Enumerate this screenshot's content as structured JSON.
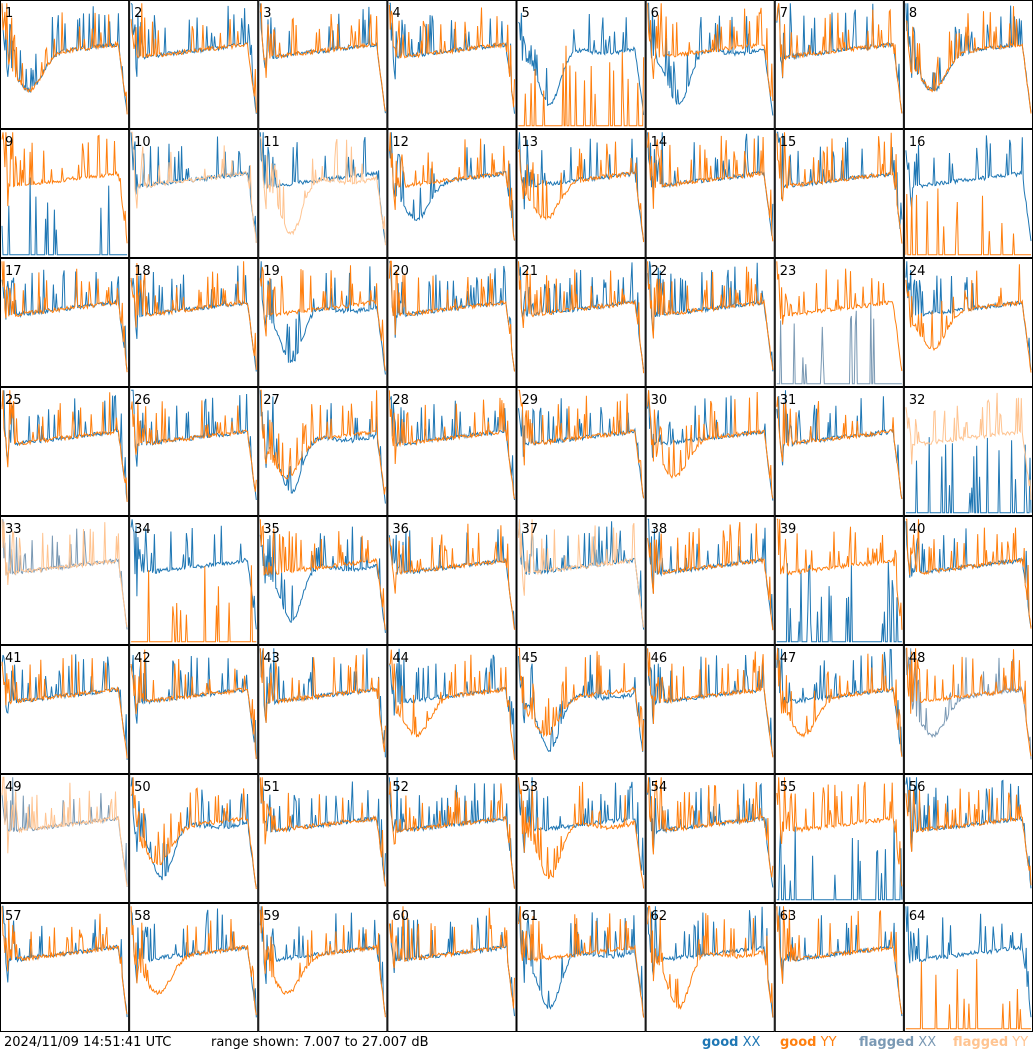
{
  "footer": {
    "timestamp": "2024/11/09 14:51:41 UTC",
    "range_text": "range shown: 7.007 to 27.007 dB"
  },
  "legend": {
    "good_xx": {
      "word": "good",
      "pol": "XX",
      "color": "#1f77b4"
    },
    "good_yy": {
      "word": "good",
      "pol": "YY",
      "color": "#ff7f0e"
    },
    "flagged_xx": {
      "word": "flagged",
      "pol": "XX",
      "color": "#7a99b4"
    },
    "flagged_yy": {
      "word": "flagged",
      "pol": "YY",
      "color": "#ffc491"
    }
  },
  "chart_data": {
    "type": "line",
    "layout": "8x8 small multiples",
    "y_unit": "dB",
    "ylim": [
      7.007,
      27.007
    ],
    "panels": [
      {
        "label": "1",
        "xx": "good",
        "yy": "good",
        "shape_xx": "sag",
        "shape_yy": "sag"
      },
      {
        "label": "2",
        "xx": "good",
        "yy": "good",
        "shape_xx": "flat",
        "shape_yy": "flat"
      },
      {
        "label": "3",
        "xx": "good",
        "yy": "good",
        "shape_xx": "flat",
        "shape_yy": "flat"
      },
      {
        "label": "4",
        "xx": "good",
        "yy": "good",
        "shape_xx": "flat",
        "shape_yy": "flat"
      },
      {
        "label": "5",
        "xx": "good",
        "yy": "good",
        "shape_xx": "deep",
        "shape_yy": "zero"
      },
      {
        "label": "6",
        "xx": "good",
        "yy": "good",
        "shape_xx": "deep",
        "shape_yy": "flat"
      },
      {
        "label": "7",
        "xx": "good",
        "yy": "good",
        "shape_xx": "flat",
        "shape_yy": "flat"
      },
      {
        "label": "8",
        "xx": "good",
        "yy": "good",
        "shape_xx": "sag",
        "shape_yy": "sag"
      },
      {
        "label": "9",
        "xx": "good",
        "yy": "good",
        "shape_xx": "zero",
        "shape_yy": "flat"
      },
      {
        "label": "10",
        "xx": "good",
        "yy": "flagged",
        "shape_xx": "flat",
        "shape_yy": "flat"
      },
      {
        "label": "11",
        "xx": "good",
        "yy": "flagged",
        "shape_xx": "flat",
        "shape_yy": "deep"
      },
      {
        "label": "12",
        "xx": "good",
        "yy": "good",
        "shape_xx": "sag",
        "shape_yy": "flat"
      },
      {
        "label": "13",
        "xx": "good",
        "yy": "good",
        "shape_xx": "flat",
        "shape_yy": "sag"
      },
      {
        "label": "14",
        "xx": "good",
        "yy": "good",
        "shape_xx": "flat",
        "shape_yy": "flat"
      },
      {
        "label": "15",
        "xx": "good",
        "yy": "good",
        "shape_xx": "flat",
        "shape_yy": "flat"
      },
      {
        "label": "16",
        "xx": "good",
        "yy": "good",
        "shape_xx": "flat",
        "shape_yy": "zero"
      },
      {
        "label": "17",
        "xx": "good",
        "yy": "good",
        "shape_xx": "flat",
        "shape_yy": "flat"
      },
      {
        "label": "18",
        "xx": "good",
        "yy": "good",
        "shape_xx": "flat",
        "shape_yy": "flat"
      },
      {
        "label": "19",
        "xx": "good",
        "yy": "good",
        "shape_xx": "deep",
        "shape_yy": "flat"
      },
      {
        "label": "20",
        "xx": "good",
        "yy": "good",
        "shape_xx": "flat",
        "shape_yy": "flat"
      },
      {
        "label": "21",
        "xx": "good",
        "yy": "good",
        "shape_xx": "flat",
        "shape_yy": "flat"
      },
      {
        "label": "22",
        "xx": "good",
        "yy": "good",
        "shape_xx": "flat",
        "shape_yy": "flat"
      },
      {
        "label": "23",
        "xx": "flagged",
        "yy": "good",
        "shape_xx": "zero",
        "shape_yy": "flat"
      },
      {
        "label": "24",
        "xx": "good",
        "yy": "good",
        "shape_xx": "flat",
        "shape_yy": "sag"
      },
      {
        "label": "25",
        "xx": "good",
        "yy": "good",
        "shape_xx": "flat",
        "shape_yy": "flat"
      },
      {
        "label": "26",
        "xx": "good",
        "yy": "good",
        "shape_xx": "flat",
        "shape_yy": "flat"
      },
      {
        "label": "27",
        "xx": "good",
        "yy": "good",
        "shape_xx": "deep",
        "shape_yy": "sag"
      },
      {
        "label": "28",
        "xx": "good",
        "yy": "good",
        "shape_xx": "flat",
        "shape_yy": "flat"
      },
      {
        "label": "29",
        "xx": "good",
        "yy": "good",
        "shape_xx": "flat",
        "shape_yy": "flat"
      },
      {
        "label": "30",
        "xx": "good",
        "yy": "good",
        "shape_xx": "flat",
        "shape_yy": "sag"
      },
      {
        "label": "31",
        "xx": "good",
        "yy": "good",
        "shape_xx": "flat",
        "shape_yy": "flat"
      },
      {
        "label": "32",
        "xx": "good",
        "yy": "flagged",
        "shape_xx": "zero",
        "shape_yy": "flat"
      },
      {
        "label": "33",
        "xx": "flagged",
        "yy": "flagged",
        "shape_xx": "flat",
        "shape_yy": "flat"
      },
      {
        "label": "34",
        "xx": "good",
        "yy": "good",
        "shape_xx": "flat",
        "shape_yy": "zero"
      },
      {
        "label": "35",
        "xx": "good",
        "yy": "good",
        "shape_xx": "deep",
        "shape_yy": "flat"
      },
      {
        "label": "36",
        "xx": "good",
        "yy": "good",
        "shape_xx": "flat",
        "shape_yy": "flat"
      },
      {
        "label": "37",
        "xx": "good",
        "yy": "flagged",
        "shape_xx": "flat",
        "shape_yy": "flat"
      },
      {
        "label": "38",
        "xx": "good",
        "yy": "good",
        "shape_xx": "flat",
        "shape_yy": "flat"
      },
      {
        "label": "39",
        "xx": "good",
        "yy": "good",
        "shape_xx": "zero",
        "shape_yy": "flat"
      },
      {
        "label": "40",
        "xx": "good",
        "yy": "good",
        "shape_xx": "flat",
        "shape_yy": "flat"
      },
      {
        "label": "41",
        "xx": "good",
        "yy": "good",
        "shape_xx": "flat",
        "shape_yy": "flat"
      },
      {
        "label": "42",
        "xx": "good",
        "yy": "good",
        "shape_xx": "flat",
        "shape_yy": "flat"
      },
      {
        "label": "43",
        "xx": "good",
        "yy": "good",
        "shape_xx": "flat",
        "shape_yy": "flat"
      },
      {
        "label": "44",
        "xx": "good",
        "yy": "good",
        "shape_xx": "flat",
        "shape_yy": "sag"
      },
      {
        "label": "45",
        "xx": "good",
        "yy": "good",
        "shape_xx": "deep",
        "shape_yy": "sag"
      },
      {
        "label": "46",
        "xx": "good",
        "yy": "good",
        "shape_xx": "flat",
        "shape_yy": "flat"
      },
      {
        "label": "47",
        "xx": "good",
        "yy": "good",
        "shape_xx": "flat",
        "shape_yy": "sag"
      },
      {
        "label": "48",
        "xx": "flagged",
        "yy": "good",
        "shape_xx": "sag",
        "shape_yy": "flat"
      },
      {
        "label": "49",
        "xx": "flagged",
        "yy": "flagged",
        "shape_xx": "flat",
        "shape_yy": "flat"
      },
      {
        "label": "50",
        "xx": "good",
        "yy": "good",
        "shape_xx": "deep",
        "shape_yy": "sag"
      },
      {
        "label": "51",
        "xx": "good",
        "yy": "good",
        "shape_xx": "flat",
        "shape_yy": "flat"
      },
      {
        "label": "52",
        "xx": "good",
        "yy": "good",
        "shape_xx": "flat",
        "shape_yy": "flat"
      },
      {
        "label": "53",
        "xx": "good",
        "yy": "good",
        "shape_xx": "flat",
        "shape_yy": "deep"
      },
      {
        "label": "54",
        "xx": "good",
        "yy": "good",
        "shape_xx": "flat",
        "shape_yy": "flat"
      },
      {
        "label": "55",
        "xx": "good",
        "yy": "good",
        "shape_xx": "zero",
        "shape_yy": "flat"
      },
      {
        "label": "56",
        "xx": "good",
        "yy": "good",
        "shape_xx": "flat",
        "shape_yy": "flat"
      },
      {
        "label": "57",
        "xx": "good",
        "yy": "good",
        "shape_xx": "flat",
        "shape_yy": "flat"
      },
      {
        "label": "58",
        "xx": "good",
        "yy": "good",
        "shape_xx": "flat",
        "shape_yy": "sag"
      },
      {
        "label": "59",
        "xx": "good",
        "yy": "good",
        "shape_xx": "flat",
        "shape_yy": "sag"
      },
      {
        "label": "60",
        "xx": "good",
        "yy": "good",
        "shape_xx": "flat",
        "shape_yy": "flat"
      },
      {
        "label": "61",
        "xx": "good",
        "yy": "good",
        "shape_xx": "deep",
        "shape_yy": "flat"
      },
      {
        "label": "62",
        "xx": "good",
        "yy": "good",
        "shape_xx": "flat",
        "shape_yy": "deep"
      },
      {
        "label": "63",
        "xx": "good",
        "yy": "good",
        "shape_xx": "flat",
        "shape_yy": "flat"
      },
      {
        "label": "64",
        "xx": "good",
        "yy": "good",
        "shape_xx": "flat",
        "shape_yy": "zero"
      }
    ]
  }
}
